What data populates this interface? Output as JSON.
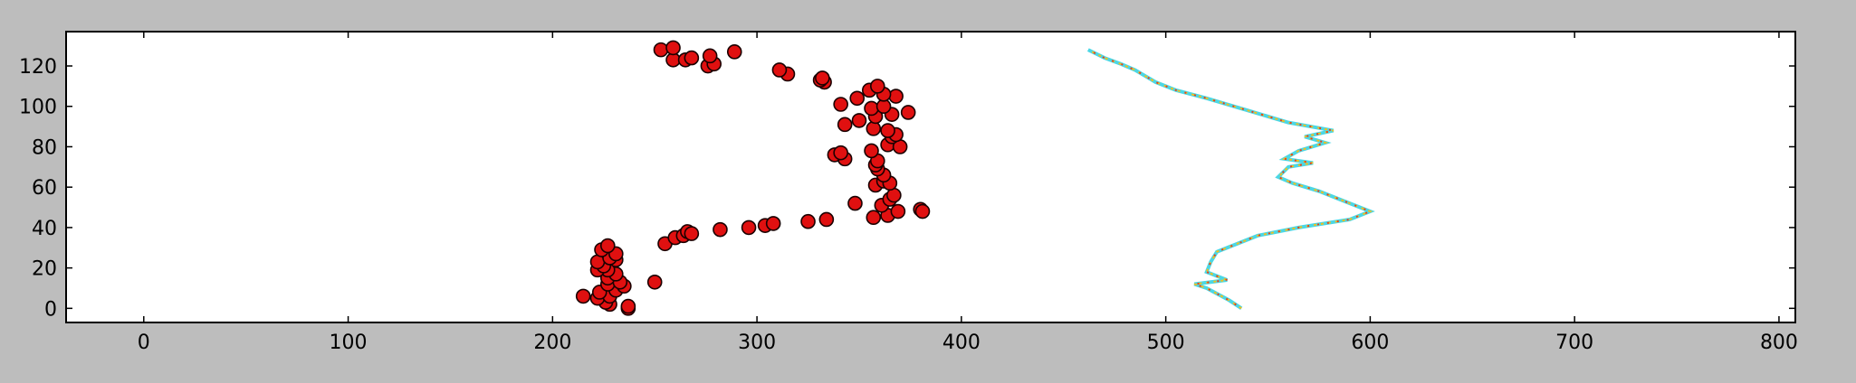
{
  "chart_data": {
    "type": "scatter",
    "title": "",
    "xlabel": "",
    "ylabel": "",
    "xlim": [
      -38,
      808
    ],
    "ylim": [
      137,
      -7
    ],
    "y_inverted": true,
    "grid": false,
    "legend": "none",
    "xticks": [
      "0",
      "100",
      "200",
      "300",
      "400",
      "500",
      "600",
      "700",
      "800"
    ],
    "yticks": [
      "0",
      "20",
      "40",
      "60",
      "80",
      "100",
      "120"
    ],
    "background_image": {
      "kind": "heatmap",
      "extent_x": [
        0,
        768
      ],
      "extent_y": [
        0,
        128
      ],
      "colormap": "jet",
      "description_colors": {
        "base": "#0a34c8",
        "speckle": "#28a8e8",
        "hot": "#e84018"
      },
      "bright_track": [
        [
          537,
          0
        ],
        [
          531,
          4
        ],
        [
          520,
          10
        ],
        [
          514,
          12
        ],
        [
          530,
          14
        ],
        [
          520,
          18
        ],
        [
          522,
          23
        ],
        [
          525,
          28
        ],
        [
          545,
          36
        ],
        [
          565,
          40
        ],
        [
          590,
          44
        ],
        [
          600,
          48
        ],
        [
          585,
          54
        ],
        [
          575,
          58
        ],
        [
          562,
          62
        ],
        [
          555,
          65
        ],
        [
          560,
          70
        ],
        [
          572,
          72
        ],
        [
          558,
          74
        ],
        [
          565,
          78
        ],
        [
          578,
          82
        ],
        [
          568,
          85
        ],
        [
          582,
          88
        ],
        [
          560,
          92
        ],
        [
          540,
          98
        ],
        [
          520,
          104
        ],
        [
          505,
          108
        ],
        [
          495,
          112
        ],
        [
          485,
          118
        ],
        [
          478,
          121
        ],
        [
          470,
          124
        ],
        [
          462,
          128
        ]
      ]
    },
    "series": [
      {
        "marker_color": "#e01010",
        "marker_edge": "#1a0000",
        "points": [
          [
            237,
            0
          ],
          [
            237,
            1
          ],
          [
            228,
            2
          ],
          [
            226,
            3
          ],
          [
            222,
            5
          ],
          [
            215,
            6
          ],
          [
            228,
            6
          ],
          [
            223,
            8
          ],
          [
            231,
            9
          ],
          [
            235,
            11
          ],
          [
            227,
            12
          ],
          [
            233,
            13
          ],
          [
            250,
            13
          ],
          [
            227,
            15
          ],
          [
            231,
            17
          ],
          [
            227,
            19
          ],
          [
            222,
            19
          ],
          [
            225,
            21
          ],
          [
            222,
            23
          ],
          [
            231,
            24
          ],
          [
            228,
            25
          ],
          [
            231,
            27
          ],
          [
            224,
            29
          ],
          [
            227,
            31
          ],
          [
            255,
            32
          ],
          [
            260,
            35
          ],
          [
            264,
            36
          ],
          [
            266,
            38
          ],
          [
            268,
            37
          ],
          [
            282,
            39
          ],
          [
            296,
            40
          ],
          [
            304,
            41
          ],
          [
            308,
            42
          ],
          [
            325,
            43
          ],
          [
            334,
            44
          ],
          [
            357,
            45
          ],
          [
            364,
            46
          ],
          [
            369,
            48
          ],
          [
            380,
            49
          ],
          [
            381,
            48
          ],
          [
            348,
            52
          ],
          [
            361,
            51
          ],
          [
            365,
            54
          ],
          [
            367,
            56
          ],
          [
            358,
            61
          ],
          [
            362,
            63
          ],
          [
            365,
            62
          ],
          [
            362,
            66
          ],
          [
            359,
            69
          ],
          [
            358,
            71
          ],
          [
            359,
            73
          ],
          [
            343,
            74
          ],
          [
            338,
            76
          ],
          [
            341,
            77
          ],
          [
            356,
            78
          ],
          [
            364,
            81
          ],
          [
            370,
            80
          ],
          [
            366,
            85
          ],
          [
            368,
            86
          ],
          [
            364,
            88
          ],
          [
            357,
            89
          ],
          [
            343,
            91
          ],
          [
            350,
            93
          ],
          [
            358,
            95
          ],
          [
            366,
            96
          ],
          [
            374,
            97
          ],
          [
            356,
            99
          ],
          [
            362,
            100
          ],
          [
            341,
            101
          ],
          [
            349,
            104
          ],
          [
            368,
            105
          ],
          [
            362,
            106
          ],
          [
            355,
            108
          ],
          [
            359,
            110
          ],
          [
            333,
            112
          ],
          [
            331,
            113
          ],
          [
            332,
            114
          ],
          [
            315,
            116
          ],
          [
            311,
            118
          ],
          [
            259,
            123
          ],
          [
            265,
            123
          ],
          [
            276,
            120
          ],
          [
            279,
            121
          ],
          [
            277,
            125
          ],
          [
            268,
            124
          ],
          [
            253,
            128
          ],
          [
            259,
            129
          ],
          [
            289,
            127
          ]
        ]
      }
    ]
  }
}
